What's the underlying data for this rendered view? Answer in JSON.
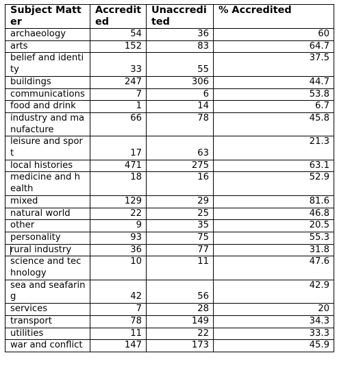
{
  "table": {
    "headers": {
      "subject": "Subject Matter",
      "accredited": "Accredited",
      "unaccredited": "Unaccredited",
      "percent": "% Accredited"
    },
    "rows": [
      {
        "subject": "archaeology",
        "accredited": "54",
        "unaccredited": "36",
        "percent": "60"
      },
      {
        "subject": "arts",
        "accredited": "152",
        "unaccredited": "83",
        "percent": "64.7"
      },
      {
        "subject": "belief and identity",
        "accredited": "33",
        "unaccredited": "55",
        "percent": "37.5"
      },
      {
        "subject": "buildings",
        "accredited": "247",
        "unaccredited": "306",
        "percent": "44.7"
      },
      {
        "subject": "communications",
        "accredited": "7",
        "unaccredited": "6",
        "percent": "53.8"
      },
      {
        "subject": "food and drink",
        "accredited": "1",
        "unaccredited": "14",
        "percent": "6.7"
      },
      {
        "subject": "industry and manufacture",
        "accredited": "66",
        "unaccredited": "78",
        "percent": "45.8"
      },
      {
        "subject": "leisure and sport",
        "accredited": "17",
        "unaccredited": "63",
        "percent": "21.3"
      },
      {
        "subject": "local histories",
        "accredited": "471",
        "unaccredited": "275",
        "percent": "63.1"
      },
      {
        "subject": "medicine and health",
        "accredited": "18",
        "unaccredited": "16",
        "percent": "52.9"
      },
      {
        "subject": "mixed",
        "accredited": "129",
        "unaccredited": "29",
        "percent": "81.6"
      },
      {
        "subject": "natural world",
        "accredited": "22",
        "unaccredited": "25",
        "percent": "46.8"
      },
      {
        "subject": "other",
        "accredited": "9",
        "unaccredited": "35",
        "percent": "20.5"
      },
      {
        "subject": "personality",
        "accredited": "93",
        "unaccredited": "75",
        "percent": "55.3"
      },
      {
        "subject": "rural industry",
        "accredited": "36",
        "unaccredited": "77",
        "percent": "31.8"
      },
      {
        "subject": "science and technology",
        "accredited": "10",
        "unaccredited": "11",
        "percent": "47.6"
      },
      {
        "subject": "sea and seafaring",
        "accredited": "42",
        "unaccredited": "56",
        "percent": "42.9"
      },
      {
        "subject": "services",
        "accredited": "7",
        "unaccredited": "28",
        "percent": "20"
      },
      {
        "subject": "transport",
        "accredited": "78",
        "unaccredited": "149",
        "percent": "34.3"
      },
      {
        "subject": "utilities",
        "accredited": "11",
        "unaccredited": "22",
        "percent": "33.3"
      },
      {
        "subject": "war and conflict",
        "accredited": "147",
        "unaccredited": "173",
        "percent": "45.9"
      }
    ]
  }
}
